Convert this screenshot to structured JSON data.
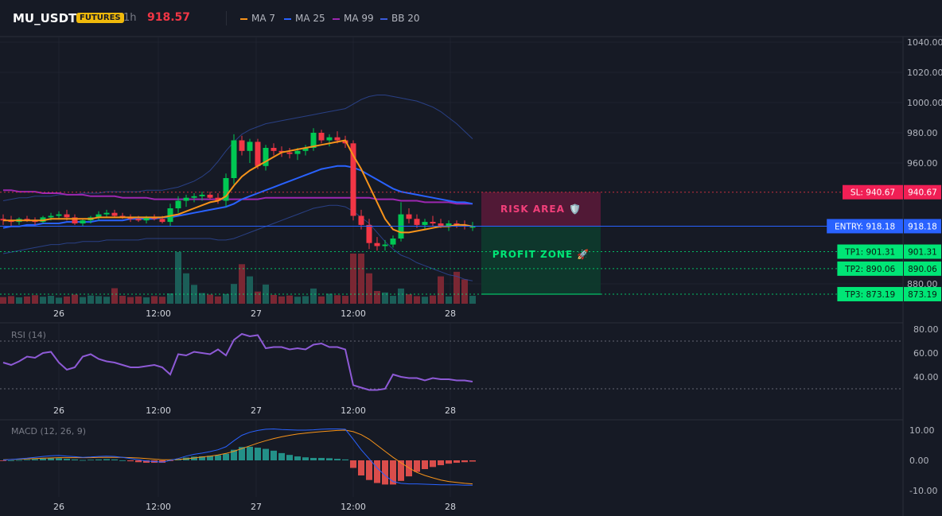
{
  "header": {
    "symbol": "MU_USDT",
    "badge": "FUTURES",
    "timeframe": "1h",
    "last_price": "918.57",
    "legend": [
      {
        "label": "MA 7",
        "color": "#f7931a"
      },
      {
        "label": "MA 25",
        "color": "#2962ff"
      },
      {
        "label": "MA 99",
        "color": "#9c27b0"
      },
      {
        "label": "BB 20",
        "color": "#1e3a8a"
      }
    ]
  },
  "chart_data": [
    {
      "type": "candlestick",
      "pane": "price",
      "x_labels": [
        "26",
        "12:00",
        "27",
        "12:00",
        "28"
      ],
      "y_ticks": [
        "1040.00",
        "1020.00",
        "1000.00",
        "980.00",
        "960.00",
        "880.00"
      ],
      "ylim": [
        874,
        1045
      ],
      "candles": [
        {
          "o": 923,
          "h": 926,
          "l": 919,
          "c": 922
        },
        {
          "o": 922,
          "h": 925,
          "l": 918,
          "c": 921
        },
        {
          "o": 921,
          "h": 924,
          "l": 919,
          "c": 923
        },
        {
          "o": 923,
          "h": 925,
          "l": 921,
          "c": 922
        },
        {
          "o": 922,
          "h": 924,
          "l": 919,
          "c": 921
        },
        {
          "o": 921,
          "h": 925,
          "l": 920,
          "c": 924
        },
        {
          "o": 924,
          "h": 927,
          "l": 922,
          "c": 925
        },
        {
          "o": 925,
          "h": 928,
          "l": 923,
          "c": 926
        },
        {
          "o": 926,
          "h": 929,
          "l": 922,
          "c": 924
        },
        {
          "o": 924,
          "h": 926,
          "l": 919,
          "c": 920
        },
        {
          "o": 920,
          "h": 923,
          "l": 918,
          "c": 922
        },
        {
          "o": 922,
          "h": 925,
          "l": 920,
          "c": 924
        },
        {
          "o": 924,
          "h": 928,
          "l": 922,
          "c": 926
        },
        {
          "o": 926,
          "h": 929,
          "l": 924,
          "c": 927
        },
        {
          "o": 927,
          "h": 929,
          "l": 924,
          "c": 925
        },
        {
          "o": 925,
          "h": 927,
          "l": 923,
          "c": 924
        },
        {
          "o": 924,
          "h": 926,
          "l": 921,
          "c": 923
        },
        {
          "o": 923,
          "h": 925,
          "l": 921,
          "c": 922
        },
        {
          "o": 922,
          "h": 925,
          "l": 920,
          "c": 924
        },
        {
          "o": 924,
          "h": 926,
          "l": 922,
          "c": 923
        },
        {
          "o": 923,
          "h": 925,
          "l": 920,
          "c": 921
        },
        {
          "o": 921,
          "h": 933,
          "l": 918,
          "c": 930
        },
        {
          "o": 930,
          "h": 938,
          "l": 927,
          "c": 935
        },
        {
          "o": 935,
          "h": 939,
          "l": 931,
          "c": 937
        },
        {
          "o": 937,
          "h": 940,
          "l": 934,
          "c": 938
        },
        {
          "o": 938,
          "h": 941,
          "l": 935,
          "c": 939
        },
        {
          "o": 939,
          "h": 941,
          "l": 936,
          "c": 937
        },
        {
          "o": 937,
          "h": 940,
          "l": 933,
          "c": 935
        },
        {
          "o": 935,
          "h": 953,
          "l": 931,
          "c": 950
        },
        {
          "o": 950,
          "h": 979,
          "l": 946,
          "c": 975
        },
        {
          "o": 975,
          "h": 978,
          "l": 965,
          "c": 968
        },
        {
          "o": 968,
          "h": 976,
          "l": 960,
          "c": 974
        },
        {
          "o": 974,
          "h": 976,
          "l": 956,
          "c": 958
        },
        {
          "o": 958,
          "h": 972,
          "l": 955,
          "c": 970
        },
        {
          "o": 970,
          "h": 973,
          "l": 965,
          "c": 968
        },
        {
          "o": 968,
          "h": 971,
          "l": 964,
          "c": 967
        },
        {
          "o": 967,
          "h": 970,
          "l": 963,
          "c": 966
        },
        {
          "o": 966,
          "h": 970,
          "l": 962,
          "c": 968
        },
        {
          "o": 968,
          "h": 972,
          "l": 965,
          "c": 970
        },
        {
          "o": 970,
          "h": 983,
          "l": 968,
          "c": 980
        },
        {
          "o": 980,
          "h": 982,
          "l": 973,
          "c": 975
        },
        {
          "o": 975,
          "h": 979,
          "l": 971,
          "c": 977
        },
        {
          "o": 977,
          "h": 981,
          "l": 973,
          "c": 975
        },
        {
          "o": 975,
          "h": 978,
          "l": 970,
          "c": 973
        },
        {
          "o": 973,
          "h": 975,
          "l": 922,
          "c": 925
        },
        {
          "o": 925,
          "h": 929,
          "l": 916,
          "c": 919
        },
        {
          "o": 919,
          "h": 923,
          "l": 903,
          "c": 907
        },
        {
          "o": 907,
          "h": 911,
          "l": 902,
          "c": 905
        },
        {
          "o": 905,
          "h": 909,
          "l": 902,
          "c": 906
        },
        {
          "o": 906,
          "h": 912,
          "l": 904,
          "c": 910
        },
        {
          "o": 910,
          "h": 934,
          "l": 908,
          "c": 926
        },
        {
          "o": 926,
          "h": 930,
          "l": 920,
          "c": 923
        },
        {
          "o": 923,
          "h": 926,
          "l": 917,
          "c": 919
        },
        {
          "o": 919,
          "h": 923,
          "l": 916,
          "c": 921
        },
        {
          "o": 921,
          "h": 925,
          "l": 918,
          "c": 920
        },
        {
          "o": 920,
          "h": 923,
          "l": 917,
          "c": 918
        },
        {
          "o": 918,
          "h": 922,
          "l": 915,
          "c": 920
        },
        {
          "o": 920,
          "h": 922,
          "l": 917,
          "c": 919
        },
        {
          "o": 919,
          "h": 922,
          "l": 916,
          "c": 918
        },
        {
          "o": 918,
          "h": 921,
          "l": 915,
          "c": 918
        }
      ],
      "series": [
        {
          "name": "MA 7",
          "values": [
            922,
            922,
            922,
            922,
            922,
            922,
            923,
            923,
            923,
            923,
            923,
            923,
            924,
            924,
            924,
            924,
            924,
            924,
            924,
            924,
            924,
            925,
            926,
            928,
            930,
            932,
            934,
            935,
            938,
            945,
            951,
            955,
            958,
            961,
            964,
            967,
            968,
            969,
            970,
            971,
            972,
            973,
            974,
            975,
            965,
            956,
            945,
            934,
            923,
            916,
            914,
            914,
            915,
            916,
            917,
            918,
            918,
            919,
            919,
            918
          ]
        },
        {
          "name": "MA 25",
          "values": [
            917,
            918,
            918,
            919,
            919,
            920,
            920,
            920,
            921,
            921,
            921,
            921,
            922,
            922,
            922,
            922,
            923,
            923,
            923,
            923,
            924,
            924,
            925,
            926,
            927,
            928,
            929,
            930,
            931,
            933,
            936,
            938,
            940,
            942,
            944,
            946,
            948,
            950,
            952,
            954,
            956,
            957,
            958,
            958,
            957,
            955,
            952,
            949,
            946,
            943,
            941,
            940,
            939,
            938,
            937,
            936,
            935,
            934,
            934,
            933
          ]
        },
        {
          "name": "MA 99",
          "values": [
            942,
            942,
            941,
            941,
            941,
            940,
            940,
            940,
            939,
            939,
            939,
            938,
            938,
            938,
            938,
            937,
            937,
            937,
            937,
            936,
            936,
            936,
            936,
            936,
            936,
            936,
            936,
            936,
            936,
            936,
            936,
            936,
            936,
            937,
            937,
            937,
            937,
            937,
            937,
            937,
            937,
            937,
            937,
            937,
            937,
            937,
            937,
            936,
            936,
            936,
            935,
            935,
            935,
            934,
            934,
            934,
            934,
            933,
            933,
            933
          ]
        },
        {
          "name": "BB upper",
          "values": [
            935,
            936,
            937,
            937,
            938,
            938,
            938,
            939,
            939,
            939,
            940,
            940,
            940,
            941,
            941,
            941,
            941,
            941,
            942,
            942,
            942,
            943,
            944,
            946,
            948,
            951,
            955,
            961,
            968,
            974,
            979,
            982,
            984,
            986,
            987,
            988,
            989,
            990,
            991,
            992,
            993,
            994,
            995,
            996,
            999,
            1002,
            1004,
            1005,
            1005,
            1004,
            1003,
            1002,
            1001,
            999,
            997,
            994,
            990,
            986,
            981,
            976
          ]
        },
        {
          "name": "BB lower",
          "values": [
            900,
            901,
            902,
            903,
            904,
            905,
            906,
            906,
            907,
            907,
            908,
            908,
            908,
            909,
            909,
            909,
            909,
            909,
            910,
            910,
            910,
            910,
            910,
            910,
            910,
            910,
            910,
            909,
            909,
            910,
            912,
            914,
            916,
            918,
            920,
            922,
            924,
            926,
            928,
            930,
            931,
            932,
            932,
            931,
            928,
            924,
            920,
            914,
            908,
            903,
            899,
            897,
            894,
            892,
            890,
            888,
            886,
            885,
            883,
            882
          ]
        }
      ],
      "volume_values": [
        2.2,
        2.5,
        2.1,
        2.4,
        2.8,
        2.3,
        2.6,
        2.0,
        2.4,
        3.0,
        2.2,
        2.7,
        2.5,
        2.3,
        5.1,
        2.6,
        2.2,
        2.4,
        2.1,
        2.5,
        2.3,
        3.4,
        17,
        10,
        6.2,
        3.5,
        3.0,
        2.4,
        3.2,
        6.5,
        13,
        9,
        4,
        6.3,
        2.9,
        2.4,
        2.7,
        2.3,
        2.5,
        5.0,
        2.4,
        3.3,
        2.8,
        2.6,
        16.5,
        16.5,
        10,
        4.2,
        3.7,
        2.6,
        5.0,
        3.1,
        2.5,
        2.3,
        2.7,
        9.0,
        2.4,
        10.5,
        8.0,
        2.6
      ],
      "levels": [
        {
          "name": "SL",
          "value": 940.67,
          "label": "SL: 940.67",
          "price": "940.67",
          "color": "#f23645"
        },
        {
          "name": "ENTRY",
          "value": 918.18,
          "label": "ENTRY: 918.18",
          "price": "918.18",
          "color": "#2962ff"
        },
        {
          "name": "TP1",
          "value": 901.31,
          "label": "TP1: 901.31",
          "price": "901.31",
          "color": "#00e676"
        },
        {
          "name": "TP2",
          "value": 890.06,
          "label": "TP2: 890.06",
          "price": "890.06",
          "color": "#00e676"
        },
        {
          "name": "TP3",
          "value": 873.19,
          "label": "TP3: 873.19",
          "price": "873.19",
          "color": "#00e676"
        }
      ],
      "zones": {
        "risk_label": "RISK AREA 🛡️",
        "profit_label": "PROFIT ZONE 🚀"
      }
    },
    {
      "type": "line",
      "pane": "rsi",
      "title": "RSI (14)",
      "y_ticks": [
        "80.00",
        "60.00",
        "40.00"
      ],
      "ylim": [
        20,
        85
      ],
      "guides": [
        70,
        30
      ],
      "x_labels": [
        "26",
        "12:00",
        "27",
        "12:00",
        "28"
      ],
      "values": [
        52,
        50,
        53,
        57,
        56,
        60,
        61,
        52,
        46,
        48,
        57,
        59,
        55,
        53,
        52,
        50,
        48,
        48,
        49,
        50,
        48,
        42,
        59,
        58,
        61,
        60,
        59,
        63,
        58,
        71,
        76,
        74,
        75,
        64,
        65,
        65,
        63,
        64,
        63,
        67,
        68,
        65,
        65,
        63,
        33,
        31,
        29,
        29,
        30,
        42,
        40,
        39,
        39,
        37,
        39,
        38,
        38,
        37,
        37,
        36
      ]
    },
    {
      "type": "line+bar",
      "pane": "macd",
      "title": "MACD (12, 26, 9)",
      "y_ticks": [
        "10.00",
        "0.00",
        "-10.00"
      ],
      "ylim": [
        -11,
        12
      ],
      "x_labels": [
        "26",
        "12:00",
        "27",
        "12:00",
        "28"
      ],
      "series": [
        {
          "name": "MACD",
          "values": [
            0.1,
            0.3,
            0.5,
            0.7,
            1.0,
            1.3,
            1.5,
            1.6,
            1.4,
            1.2,
            1.0,
            1.1,
            1.3,
            1.4,
            1.3,
            1.0,
            0.6,
            0.2,
            -0.2,
            -0.4,
            -0.6,
            0.0,
            0.6,
            1.4,
            2.0,
            2.4,
            2.9,
            3.5,
            4.5,
            6.5,
            8.3,
            9.3,
            9.9,
            10.3,
            10.4,
            10.2,
            10.1,
            10.0,
            10.0,
            10.1,
            10.3,
            10.4,
            10.4,
            10.3,
            7.0,
            3.5,
            0.5,
            -2.5,
            -5.0,
            -7.0,
            -7.6,
            -7.8,
            -7.8,
            -7.9,
            -8.0,
            -8.1,
            -8.1,
            -8.1,
            -8.2,
            -8.2
          ]
        },
        {
          "name": "Signal",
          "values": [
            0.2,
            0.3,
            0.4,
            0.5,
            0.6,
            0.7,
            0.8,
            0.9,
            0.9,
            0.9,
            0.9,
            0.9,
            1.0,
            1.0,
            1.0,
            1.0,
            0.9,
            0.8,
            0.6,
            0.4,
            0.2,
            0.2,
            0.3,
            0.5,
            0.8,
            1.1,
            1.4,
            1.8,
            2.3,
            3.0,
            3.9,
            4.8,
            5.7,
            6.5,
            7.2,
            7.8,
            8.3,
            8.7,
            9.0,
            9.3,
            9.5,
            9.7,
            9.9,
            10.0,
            9.5,
            8.5,
            7.0,
            5.0,
            3.0,
            1.0,
            -0.8,
            -2.5,
            -4.0,
            -5.0,
            -5.8,
            -6.5,
            -7.0,
            -7.3,
            -7.6,
            -7.8
          ]
        },
        {
          "name": "Histogram",
          "values": [
            -0.1,
            0.0,
            0.1,
            0.2,
            0.4,
            0.6,
            0.7,
            0.7,
            0.5,
            0.3,
            0.1,
            0.2,
            0.3,
            0.4,
            0.3,
            0.0,
            -0.3,
            -0.6,
            -0.8,
            -0.8,
            -0.8,
            -0.2,
            0.3,
            0.9,
            1.2,
            1.3,
            1.5,
            1.7,
            2.2,
            3.5,
            4.4,
            4.5,
            4.2,
            3.8,
            3.2,
            2.4,
            1.8,
            1.3,
            1.0,
            0.8,
            0.8,
            0.7,
            0.5,
            0.3,
            -2.5,
            -5.0,
            -6.5,
            -7.5,
            -8.0,
            -8.0,
            -6.8,
            -5.3,
            -3.8,
            -2.9,
            -2.2,
            -1.6,
            -1.1,
            -0.8,
            -0.6,
            -0.4
          ]
        }
      ]
    }
  ]
}
